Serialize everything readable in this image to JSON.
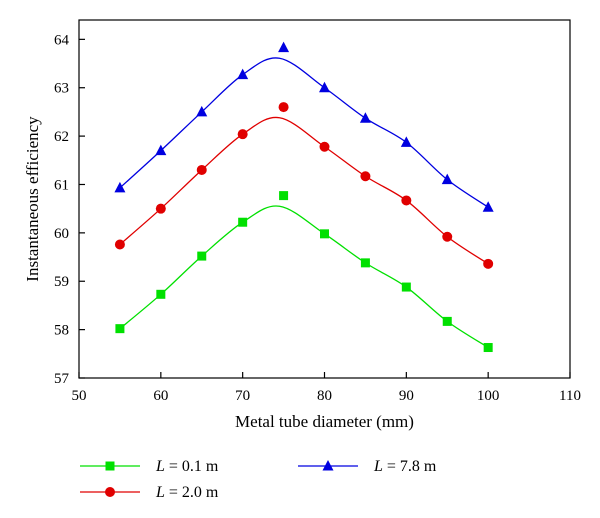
{
  "chart_data": {
    "type": "line",
    "xlabel": "Metal tube diameter (mm)",
    "ylabel": "Instantaneous efficiency",
    "xlim": [
      50,
      110
    ],
    "ylim": [
      57,
      64.4
    ],
    "xticks": [
      50,
      60,
      70,
      80,
      90,
      100,
      110
    ],
    "yticks": [
      57,
      58,
      59,
      60,
      61,
      62,
      63,
      64
    ],
    "grid": false,
    "legend_position": "bottom",
    "x": [
      55,
      60,
      65,
      70,
      75,
      80,
      85,
      90,
      95,
      100
    ],
    "series": [
      {
        "name": "L = 0.1 m",
        "name_italic": "L",
        "name_rest": " = 0.1 m",
        "marker": "square",
        "color": "#00e000",
        "values": [
          58.02,
          58.73,
          59.52,
          60.22,
          60.77,
          59.98,
          59.38,
          58.88,
          58.17,
          57.63
        ]
      },
      {
        "name": "L = 2.0 m",
        "name_italic": "L",
        "name_rest": " = 2.0 m",
        "marker": "circle",
        "color": "#e00000",
        "values": [
          59.76,
          60.5,
          61.3,
          62.04,
          62.6,
          61.78,
          61.17,
          60.67,
          59.92,
          59.36
        ]
      },
      {
        "name": "L = 7.8 m",
        "name_italic": "L",
        "name_rest": " = 7.8 m",
        "marker": "triangle",
        "color": "#0000e0",
        "values": [
          60.93,
          61.7,
          62.5,
          63.27,
          63.83,
          63.0,
          62.37,
          61.87,
          61.1,
          60.53
        ]
      }
    ]
  }
}
